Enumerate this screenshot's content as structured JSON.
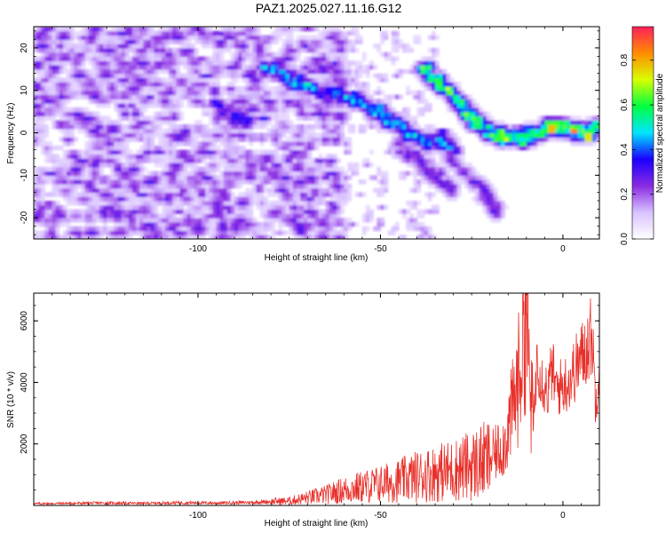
{
  "title": "PAZ1.2025.027.11.16.G12",
  "chart_data": [
    {
      "type": "heatmap",
      "xlabel": "Height of straight line (km)",
      "ylabel": "Frequency (Hz)",
      "xlim": [
        -145,
        10
      ],
      "ylim": [
        -25,
        25
      ],
      "xticks": [
        -100,
        -50,
        0
      ],
      "yticks": [
        -20,
        -10,
        0,
        10,
        20
      ],
      "colorbar": {
        "label": "Normalized spectral amplitude",
        "range": [
          0,
          0.95
        ],
        "ticks": [
          0.0,
          0.2,
          0.4,
          0.6,
          0.8
        ],
        "colormap": "rainbow",
        "stops": [
          "#ffffff",
          "#d9c2ff",
          "#8a2be2",
          "#1a00ff",
          "#00e5ff",
          "#00ff40",
          "#d8ff00",
          "#ff8c00",
          "#ff1f5a"
        ]
      },
      "ridges": [
        {
          "points": [
            [
              -82,
              16
            ],
            [
              -75,
              13
            ],
            [
              -70,
              11
            ],
            [
              -62,
              9
            ],
            [
              -55,
              7
            ],
            [
              -50,
              5
            ],
            [
              -46,
              2
            ],
            [
              -42,
              0
            ],
            [
              -36,
              -2
            ],
            [
              -30,
              -3
            ]
          ],
          "intensity": 0.35
        },
        {
          "points": [
            [
              -38,
              15
            ],
            [
              -33,
              11
            ],
            [
              -28,
              7
            ],
            [
              -24,
              3
            ],
            [
              -20,
              0
            ],
            [
              -15,
              -1
            ],
            [
              -10,
              -1
            ],
            [
              -5,
              1
            ],
            [
              0,
              1
            ],
            [
              5,
              0
            ],
            [
              10,
              1
            ]
          ],
          "intensity": 0.5
        },
        {
          "points": [
            [
              -95,
              6
            ],
            [
              -90,
              4
            ],
            [
              -85,
              3
            ]
          ],
          "intensity": 0.25
        },
        {
          "points": [
            [
              -45,
              -3
            ],
            [
              -40,
              -6
            ],
            [
              -35,
              -10
            ],
            [
              -30,
              -13
            ]
          ],
          "intensity": 0.2
        },
        {
          "points": [
            [
              -32,
              -5
            ],
            [
              -27,
              -9
            ],
            [
              -22,
              -14
            ],
            [
              -18,
              -18
            ]
          ],
          "intensity": 0.2
        }
      ],
      "noise_region_xlim": [
        -145,
        -60
      ],
      "noise_level": 0.12,
      "hotspots": [
        {
          "x": -70,
          "y": 11.5,
          "v": 0.45
        },
        {
          "x": -64,
          "y": 10,
          "v": 0.4
        },
        {
          "x": -57,
          "y": 9,
          "v": 0.42
        },
        {
          "x": -50,
          "y": 6,
          "v": 0.5
        },
        {
          "x": -82,
          "y": 3.5,
          "v": 0.3
        },
        {
          "x": -33,
          "y": 0,
          "v": 0.35
        },
        {
          "x": -18,
          "y": -1.5,
          "v": 0.55
        },
        {
          "x": -10,
          "y": 1,
          "v": 0.45
        },
        {
          "x": -3,
          "y": 1,
          "v": 0.95
        },
        {
          "x": 3,
          "y": 0.8,
          "v": 0.85
        },
        {
          "x": 7,
          "y": -1,
          "v": 0.9
        }
      ]
    },
    {
      "type": "line",
      "xlabel": "Height of straight line (km)",
      "ylabel": "SNR (10 * v/v)",
      "xlim": [
        -145,
        10
      ],
      "ylim": [
        0,
        6900
      ],
      "xticks": [
        -100,
        -50,
        0
      ],
      "yticks": [
        2000,
        4000,
        6000
      ],
      "line_color": "#e8302a",
      "series": [
        {
          "x": [
            -145,
            -135,
            -125,
            -115,
            -105,
            -95,
            -85,
            -75,
            -70,
            -65,
            -60,
            -55,
            -50,
            -45,
            -40,
            -35,
            -30,
            -25,
            -20,
            -16,
            -14,
            -12,
            -10,
            -9,
            -8,
            -7,
            -6,
            -5,
            -4,
            -3,
            -2,
            0,
            2,
            4,
            6,
            8,
            9,
            10
          ],
          "y": [
            60,
            70,
            80,
            70,
            90,
            80,
            100,
            150,
            250,
            350,
            500,
            600,
            700,
            800,
            950,
            1050,
            1150,
            1300,
            1500,
            2000,
            3000,
            4200,
            6900,
            3500,
            2800,
            5000,
            4200,
            3900,
            3700,
            4500,
            3800,
            3900,
            4100,
            4600,
            5000,
            5600,
            3300,
            4800
          ]
        }
      ]
    }
  ]
}
